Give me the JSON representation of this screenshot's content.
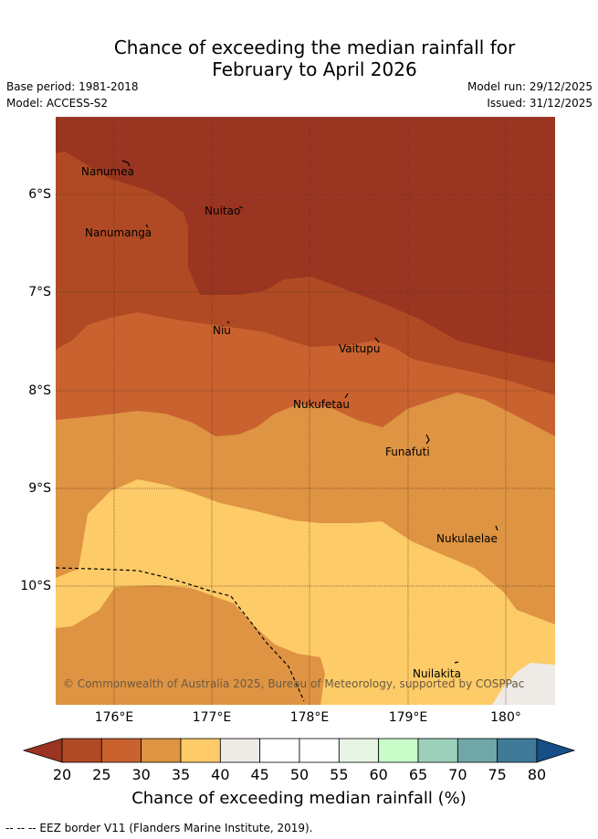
{
  "header": {
    "title_line1": "Chance of exceeding the median rainfall for",
    "title_line2": "February to April 2026",
    "base_period": "Base period: 1981-2018",
    "model": "Model: ACCESS-S2",
    "model_run": "Model run: 29/12/2025",
    "issued": "Issued: 31/12/2025"
  },
  "axes": {
    "lat_labels": [
      "6°S",
      "7°S",
      "8°S",
      "9°S",
      "10°S"
    ],
    "lon_labels": [
      "176°E",
      "177°E",
      "178°E",
      "179°E",
      "180°"
    ]
  },
  "places": [
    {
      "name": "Nanumea"
    },
    {
      "name": "Nuitao"
    },
    {
      "name": "Nanumanga"
    },
    {
      "name": "Niu"
    },
    {
      "name": "Vaitupu"
    },
    {
      "name": "Nukufetau"
    },
    {
      "name": "Funafuti"
    },
    {
      "name": "Nukulaelae"
    },
    {
      "name": "Nuilakita"
    }
  ],
  "copyright": "© Commonwealth of Australia 2025, Bureau of Meteorology, supported by COSPPac",
  "colorbar": {
    "title": "Chance of exceeding median rainfall (%)",
    "ticks": [
      "20",
      "25",
      "30",
      "35",
      "40",
      "45",
      "50",
      "55",
      "60",
      "65",
      "70",
      "75",
      "80"
    ],
    "colors": [
      "#b04a24",
      "#c9622f",
      "#de9442",
      "#fdcb67",
      "#eeeae6",
      "#ffffff",
      "#ffffff",
      "#e7f4e4",
      "#c8fcc8",
      "#9dd0bb",
      "#6fa6a8",
      "#3f7a99"
    ],
    "under_color": "#9a3521",
    "over_color": "#174e88"
  },
  "footnote": "--  --  -- EEZ border V11 (Flanders Marine Institute, 2019)."
}
